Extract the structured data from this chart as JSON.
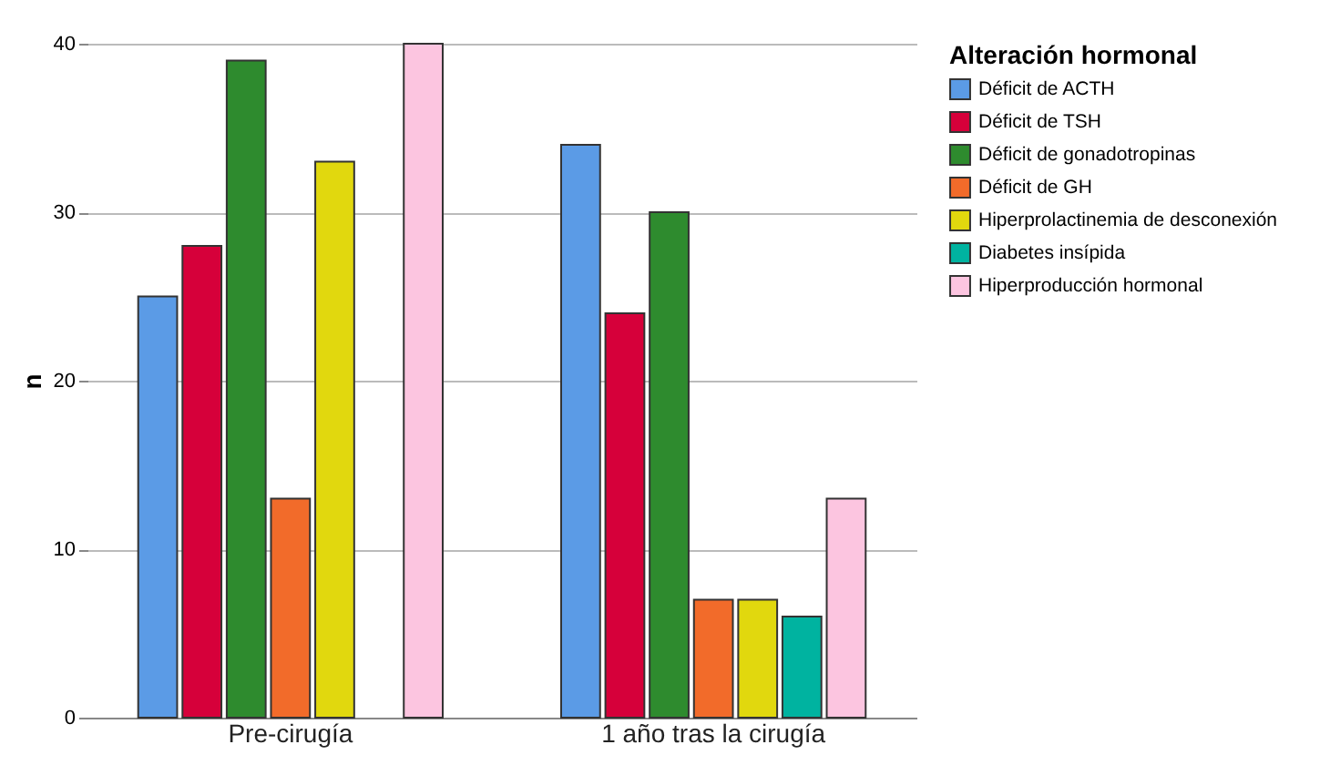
{
  "chart_data": {
    "type": "bar",
    "ylabel": "n",
    "legend_title": "Alteración hormonal",
    "legend": "top right",
    "grid": "y",
    "categories": [
      "Pre-cirugía",
      "1 año tras la cirugía"
    ],
    "ylim": [
      0,
      40
    ],
    "yticks": [
      0,
      10,
      20,
      30,
      40
    ],
    "series": [
      {
        "name": "Déficit de ACTH",
        "color": "#5b9be6",
        "values": [
          25,
          34
        ]
      },
      {
        "name": "Déficit de TSH",
        "color": "#d6003a",
        "values": [
          28,
          24
        ]
      },
      {
        "name": "Déficit de gonadotropinas",
        "color": "#2e8b2e",
        "values": [
          39,
          30
        ]
      },
      {
        "name": "Déficit de GH",
        "color": "#f26b2a",
        "values": [
          13,
          7
        ]
      },
      {
        "name": "Hiperprolactinemia de desconexión",
        "color": "#e1d80e",
        "values": [
          33,
          7
        ]
      },
      {
        "name": "Diabetes insípida",
        "color": "#00b3a0",
        "values": [
          null,
          6
        ]
      },
      {
        "name": "Hiperproducción hormonal",
        "color": "#fcc5e0",
        "values": [
          40,
          13
        ]
      }
    ]
  }
}
